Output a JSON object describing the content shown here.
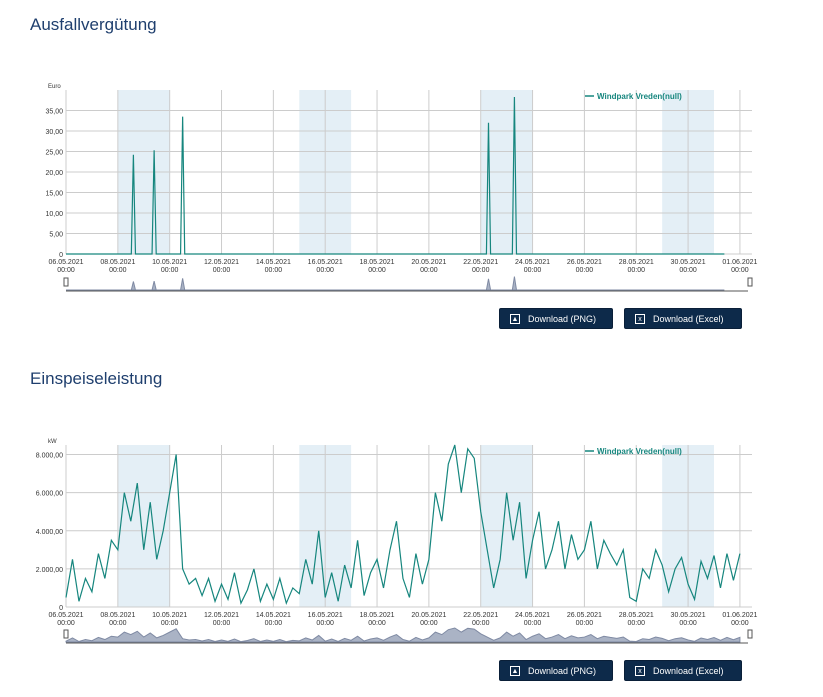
{
  "sections": [
    {
      "title": "Ausfallvergütung",
      "download_png": "Download (PNG)",
      "download_excel": "Download (Excel)"
    },
    {
      "title": "Einspeiseleistung",
      "download_png": "Download (PNG)",
      "download_excel": "Download (Excel)"
    }
  ],
  "colors": {
    "series": "#16867e",
    "band": "#e4eff6",
    "button": "#0d2a4a",
    "title": "#1f3f6e"
  },
  "chart_data": [
    {
      "type": "line",
      "title": "Ausfallvergütung",
      "ylabel": "Euro",
      "legend": "Windpark Vreden(null)",
      "legend_position": "top-right",
      "xlim_days": [
        0,
        26
      ],
      "ylim": [
        0,
        40
      ],
      "yticks": [
        0,
        5,
        10,
        15,
        20,
        25,
        30,
        35
      ],
      "ytick_labels": [
        "0",
        "5,00",
        "10,00",
        "15,00",
        "20,00",
        "25,00",
        "30,00",
        "35,00"
      ],
      "xtick_labels": [
        "06.05.2021",
        "08.05.2021",
        "10.05.2021",
        "12.05.2021",
        "14.05.2021",
        "16.05.2021",
        "18.05.2021",
        "20.05.2021",
        "22.05.2021",
        "24.05.2021",
        "26.05.2021",
        "28.05.2021",
        "30.05.2021",
        "01.06.2021"
      ],
      "xtick_time": "00:00",
      "weekend_bands": [
        [
          2,
          4
        ],
        [
          9,
          11
        ],
        [
          16,
          18
        ],
        [
          23,
          25
        ]
      ],
      "spikes": [
        {
          "day": 2.6,
          "value": 24.2
        },
        {
          "day": 3.4,
          "value": 25.3
        },
        {
          "day": 4.5,
          "value": 33.5
        },
        {
          "day": 16.3,
          "value": 32
        },
        {
          "day": 17.3,
          "value": 38.3
        }
      ]
    },
    {
      "type": "line",
      "title": "Einspeiseleistung",
      "ylabel": "kW",
      "legend": "Windpark Vreden(null)",
      "legend_position": "top-right",
      "xlim_days": [
        0,
        26
      ],
      "ylim": [
        0,
        8500
      ],
      "yticks": [
        0,
        2000,
        4000,
        6000,
        8000
      ],
      "ytick_labels": [
        "0",
        "2.000,00",
        "4.000,00",
        "6.000,00",
        "8.000,00"
      ],
      "xtick_labels": [
        "06.05.2021",
        "08.05.2021",
        "10.05.2021",
        "12.05.2021",
        "14.05.2021",
        "16.05.2021",
        "18.05.2021",
        "20.05.2021",
        "22.05.2021",
        "24.05.2021",
        "26.05.2021",
        "28.05.2021",
        "30.05.2021",
        "01.06.2021"
      ],
      "xtick_time": "00:00",
      "weekend_bands": [
        [
          2,
          4
        ],
        [
          9,
          11
        ],
        [
          16,
          18
        ],
        [
          23,
          25
        ]
      ],
      "values_6h": [
        500,
        2500,
        300,
        1500,
        800,
        2800,
        1500,
        3500,
        3000,
        6000,
        4500,
        6500,
        3000,
        5500,
        2500,
        4000,
        6000,
        8000,
        2000,
        1200,
        1500,
        600,
        1500,
        300,
        1200,
        400,
        1800,
        200,
        900,
        2000,
        300,
        1200,
        400,
        1500,
        200,
        1000,
        700,
        2500,
        1200,
        4000,
        500,
        1800,
        300,
        2200,
        1000,
        3500,
        600,
        1800,
        2500,
        1000,
        3000,
        4500,
        1500,
        500,
        2800,
        1200,
        2500,
        6000,
        4500,
        7500,
        8500,
        6000,
        8300,
        7800,
        5000,
        3000,
        1000,
        2500,
        6000,
        3500,
        5500,
        1500,
        3500,
        5000,
        2000,
        3000,
        4500,
        2000,
        3800,
        2500,
        3000,
        4500,
        2000,
        3500,
        2800,
        2200,
        3000,
        500,
        300,
        2000,
        1500,
        3000,
        2200,
        800,
        2000,
        2600,
        1200,
        400,
        2400,
        1500,
        2700,
        1000,
        2800,
        1400,
        2800
      ]
    }
  ]
}
